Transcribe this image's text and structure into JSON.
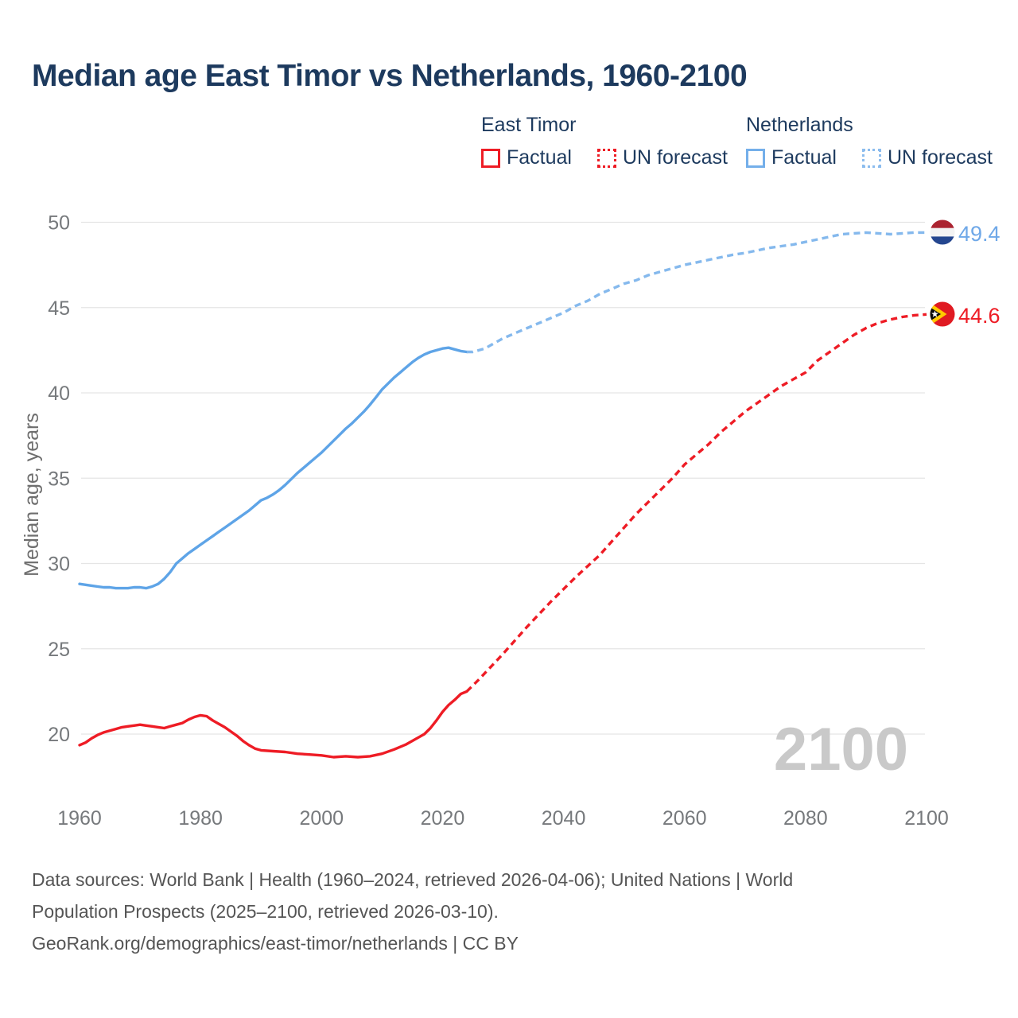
{
  "title": "Median age East Timor vs Netherlands, 1960-2100",
  "legend": {
    "groups": [
      {
        "label": "East Timor",
        "color": "#ee1c25",
        "items": [
          {
            "label": "Factual",
            "style": "solid"
          },
          {
            "label": "UN forecast",
            "style": "dotted"
          }
        ]
      },
      {
        "label": "Netherlands",
        "color": "#74afea",
        "items": [
          {
            "label": "Factual",
            "style": "solid"
          },
          {
            "label": "UN forecast",
            "style": "dotted"
          }
        ]
      }
    ]
  },
  "end_labels": [
    {
      "series": "Netherlands",
      "value": "49.4",
      "flag": "netherlands-flag"
    },
    {
      "series": "East Timor",
      "value": "44.6",
      "flag": "east-timor-flag"
    }
  ],
  "watermark": "2100",
  "footer": {
    "lines": [
      "Data sources: World Bank | Health (1960–2024, retrieved 2026-04-06); United Nations | World",
      "Population Prospects (2025–2100, retrieved 2026-03-10).",
      "GeoRank.org/demographics/east-timor/netherlands | CC BY"
    ]
  },
  "colors": {
    "east_timor": "#ee1c25",
    "netherlands_factual": "#5ea4e7",
    "netherlands_forecast": "#85b9ed",
    "title_text": "#1d3a5e",
    "axis_text": "#76797c",
    "axis_title_text": "#6e6e6e",
    "gridline": "#e5e5e5",
    "watermark": "#c9c9c9",
    "footer_text": "#555555"
  },
  "chart_data": {
    "type": "line",
    "title": "Median age East Timor vs Netherlands, 1960-2100",
    "xlabel": "",
    "ylabel": "Median age, years",
    "xlim": [
      1960,
      2100
    ],
    "ylim": [
      20,
      50
    ],
    "x_ticks": [
      1960,
      1980,
      2000,
      2020,
      2040,
      2060,
      2080,
      2100
    ],
    "y_ticks": [
      20,
      25,
      30,
      35,
      40,
      45,
      50
    ],
    "grid": "horizontal",
    "legend_position": "top-right",
    "series": [
      {
        "name": "Netherlands (Factual)",
        "color": "#5ea4e7",
        "style": "solid",
        "points": [
          [
            1960,
            28.8
          ],
          [
            1961,
            28.75
          ],
          [
            1962,
            28.7
          ],
          [
            1963,
            28.65
          ],
          [
            1964,
            28.6
          ],
          [
            1965,
            28.6
          ],
          [
            1966,
            28.55
          ],
          [
            1968,
            28.55
          ],
          [
            1969,
            28.6
          ],
          [
            1970,
            28.6
          ],
          [
            1971,
            28.55
          ],
          [
            1972,
            28.65
          ],
          [
            1973,
            28.8
          ],
          [
            1974,
            29.1
          ],
          [
            1975,
            29.5
          ],
          [
            1976,
            30.0
          ],
          [
            1977,
            30.3
          ],
          [
            1978,
            30.6
          ],
          [
            1979,
            30.85
          ],
          [
            1980,
            31.1
          ],
          [
            1981,
            31.35
          ],
          [
            1982,
            31.6
          ],
          [
            1983,
            31.85
          ],
          [
            1984,
            32.1
          ],
          [
            1985,
            32.35
          ],
          [
            1986,
            32.6
          ],
          [
            1987,
            32.85
          ],
          [
            1988,
            33.1
          ],
          [
            1989,
            33.4
          ],
          [
            1990,
            33.7
          ],
          [
            1991,
            33.85
          ],
          [
            1992,
            34.05
          ],
          [
            1993,
            34.3
          ],
          [
            1994,
            34.6
          ],
          [
            1995,
            34.95
          ],
          [
            1996,
            35.3
          ],
          [
            1997,
            35.6
          ],
          [
            1998,
            35.9
          ],
          [
            1999,
            36.2
          ],
          [
            2000,
            36.5
          ],
          [
            2001,
            36.85
          ],
          [
            2002,
            37.2
          ],
          [
            2003,
            37.55
          ],
          [
            2004,
            37.9
          ],
          [
            2005,
            38.2
          ],
          [
            2006,
            38.55
          ],
          [
            2007,
            38.9
          ],
          [
            2008,
            39.3
          ],
          [
            2009,
            39.75
          ],
          [
            2010,
            40.2
          ],
          [
            2011,
            40.55
          ],
          [
            2012,
            40.9
          ],
          [
            2013,
            41.2
          ],
          [
            2014,
            41.5
          ],
          [
            2015,
            41.8
          ],
          [
            2016,
            42.05
          ],
          [
            2017,
            42.25
          ],
          [
            2018,
            42.4
          ],
          [
            2019,
            42.5
          ],
          [
            2020,
            42.6
          ],
          [
            2021,
            42.65
          ],
          [
            2022,
            42.55
          ],
          [
            2023,
            42.45
          ],
          [
            2024,
            42.4
          ]
        ]
      },
      {
        "name": "Netherlands (UN forecast)",
        "color": "#85b9ed",
        "style": "dashed",
        "points": [
          [
            2024,
            42.4
          ],
          [
            2025,
            42.4
          ],
          [
            2026,
            42.5
          ],
          [
            2027,
            42.6
          ],
          [
            2028,
            42.8
          ],
          [
            2030,
            43.2
          ],
          [
            2032,
            43.5
          ],
          [
            2034,
            43.8
          ],
          [
            2036,
            44.1
          ],
          [
            2038,
            44.4
          ],
          [
            2040,
            44.7
          ],
          [
            2042,
            45.1
          ],
          [
            2044,
            45.4
          ],
          [
            2046,
            45.8
          ],
          [
            2048,
            46.1
          ],
          [
            2050,
            46.4
          ],
          [
            2052,
            46.6
          ],
          [
            2054,
            46.9
          ],
          [
            2056,
            47.1
          ],
          [
            2058,
            47.3
          ],
          [
            2060,
            47.5
          ],
          [
            2062,
            47.65
          ],
          [
            2064,
            47.8
          ],
          [
            2066,
            47.95
          ],
          [
            2068,
            48.1
          ],
          [
            2070,
            48.2
          ],
          [
            2072,
            48.35
          ],
          [
            2074,
            48.5
          ],
          [
            2076,
            48.6
          ],
          [
            2078,
            48.7
          ],
          [
            2080,
            48.85
          ],
          [
            2082,
            49.0
          ],
          [
            2084,
            49.15
          ],
          [
            2086,
            49.3
          ],
          [
            2088,
            49.35
          ],
          [
            2090,
            49.4
          ],
          [
            2092,
            49.35
          ],
          [
            2094,
            49.3
          ],
          [
            2096,
            49.35
          ],
          [
            2098,
            49.4
          ],
          [
            2100,
            49.4
          ]
        ]
      },
      {
        "name": "East Timor (Factual)",
        "color": "#ee1c25",
        "style": "solid",
        "points": [
          [
            1960,
            19.35
          ],
          [
            1961,
            19.5
          ],
          [
            1962,
            19.75
          ],
          [
            1963,
            19.95
          ],
          [
            1964,
            20.1
          ],
          [
            1965,
            20.2
          ],
          [
            1966,
            20.3
          ],
          [
            1967,
            20.4
          ],
          [
            1968,
            20.45
          ],
          [
            1969,
            20.5
          ],
          [
            1970,
            20.55
          ],
          [
            1971,
            20.5
          ],
          [
            1972,
            20.45
          ],
          [
            1973,
            20.4
          ],
          [
            1974,
            20.35
          ],
          [
            1975,
            20.45
          ],
          [
            1976,
            20.55
          ],
          [
            1977,
            20.65
          ],
          [
            1978,
            20.85
          ],
          [
            1979,
            21.0
          ],
          [
            1980,
            21.1
          ],
          [
            1981,
            21.05
          ],
          [
            1982,
            20.8
          ],
          [
            1983,
            20.6
          ],
          [
            1984,
            20.4
          ],
          [
            1985,
            20.15
          ],
          [
            1986,
            19.9
          ],
          [
            1987,
            19.6
          ],
          [
            1988,
            19.35
          ],
          [
            1989,
            19.15
          ],
          [
            1990,
            19.05
          ],
          [
            1992,
            19.0
          ],
          [
            1994,
            18.95
          ],
          [
            1996,
            18.85
          ],
          [
            1998,
            18.8
          ],
          [
            2000,
            18.75
          ],
          [
            2002,
            18.65
          ],
          [
            2004,
            18.7
          ],
          [
            2006,
            18.65
          ],
          [
            2008,
            18.7
          ],
          [
            2010,
            18.85
          ],
          [
            2012,
            19.1
          ],
          [
            2014,
            19.4
          ],
          [
            2016,
            19.8
          ],
          [
            2017,
            20.0
          ],
          [
            2018,
            20.35
          ],
          [
            2019,
            20.8
          ],
          [
            2020,
            21.3
          ],
          [
            2021,
            21.7
          ],
          [
            2022,
            22.0
          ],
          [
            2023,
            22.35
          ],
          [
            2024,
            22.5
          ]
        ]
      },
      {
        "name": "East Timor (UN forecast)",
        "color": "#ee1c25",
        "style": "dashed",
        "points": [
          [
            2024,
            22.5
          ],
          [
            2026,
            23.2
          ],
          [
            2028,
            23.95
          ],
          [
            2030,
            24.7
          ],
          [
            2032,
            25.5
          ],
          [
            2034,
            26.3
          ],
          [
            2036,
            27.05
          ],
          [
            2038,
            27.8
          ],
          [
            2040,
            28.5
          ],
          [
            2042,
            29.2
          ],
          [
            2044,
            29.85
          ],
          [
            2046,
            30.5
          ],
          [
            2048,
            31.3
          ],
          [
            2050,
            32.1
          ],
          [
            2052,
            32.9
          ],
          [
            2054,
            33.6
          ],
          [
            2056,
            34.3
          ],
          [
            2058,
            35.0
          ],
          [
            2060,
            35.8
          ],
          [
            2062,
            36.4
          ],
          [
            2064,
            37.0
          ],
          [
            2066,
            37.7
          ],
          [
            2068,
            38.3
          ],
          [
            2070,
            38.9
          ],
          [
            2072,
            39.4
          ],
          [
            2074,
            39.9
          ],
          [
            2076,
            40.4
          ],
          [
            2078,
            40.8
          ],
          [
            2080,
            41.2
          ],
          [
            2082,
            41.9
          ],
          [
            2084,
            42.4
          ],
          [
            2086,
            42.9
          ],
          [
            2088,
            43.4
          ],
          [
            2090,
            43.8
          ],
          [
            2092,
            44.1
          ],
          [
            2094,
            44.3
          ],
          [
            2096,
            44.45
          ],
          [
            2098,
            44.55
          ],
          [
            2100,
            44.6
          ]
        ]
      }
    ]
  }
}
